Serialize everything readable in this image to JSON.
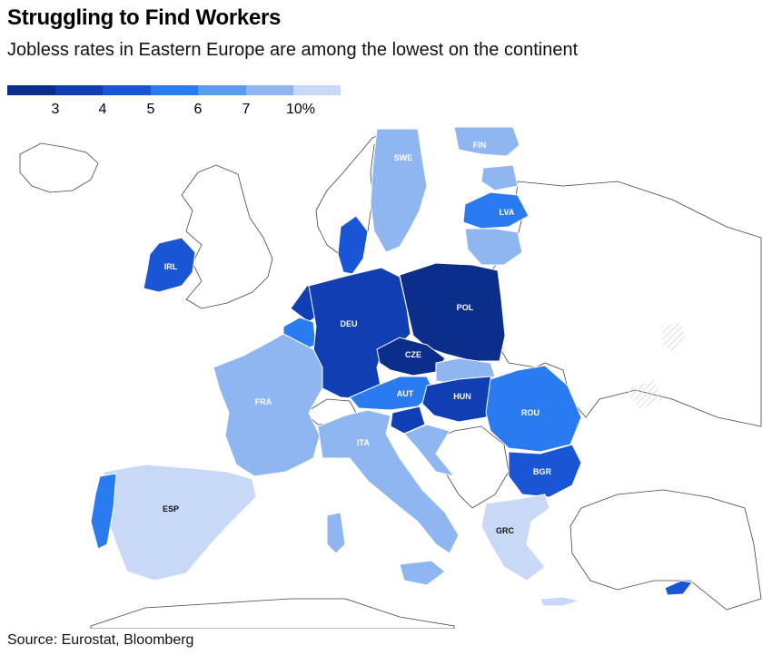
{
  "title": "Struggling to Find Workers",
  "subtitle": "Jobless rates in Eastern Europe are among the lowest on the continent",
  "legend": {
    "colors": [
      "#0a2e8a",
      "#0f3fb3",
      "#1a55d6",
      "#2b7bf0",
      "#5a9bef",
      "#8fb6f0",
      "#c8d9f7"
    ],
    "ticks": [
      "3",
      "4",
      "5",
      "6",
      "7",
      "10%"
    ]
  },
  "source": "Source: Eurostat, Bloomberg",
  "countries": [
    {
      "code": "SWE",
      "label": "SWE",
      "color": "#8fb6f0"
    },
    {
      "code": "FIN",
      "label": "FIN",
      "color": "#8fb6f0"
    },
    {
      "code": "LVA",
      "label": "LVA",
      "color": "#2b7bf0"
    },
    {
      "code": "IRL",
      "label": "IRL",
      "color": "#1a55d6"
    },
    {
      "code": "POL",
      "label": "POL",
      "color": "#0a2e8a"
    },
    {
      "code": "DEU",
      "label": "DEU",
      "color": "#0f3fb3"
    },
    {
      "code": "CZE",
      "label": "CZE",
      "color": "#0a2e8a"
    },
    {
      "code": "FRA",
      "label": "FRA",
      "color": "#8fb6f0"
    },
    {
      "code": "AUT",
      "label": "AUT",
      "color": "#2b7bf0"
    },
    {
      "code": "HUN",
      "label": "HUN",
      "color": "#0f3fb3"
    },
    {
      "code": "ROU",
      "label": "ROU",
      "color": "#2b7bf0"
    },
    {
      "code": "ITA",
      "label": "ITA",
      "color": "#8fb6f0"
    },
    {
      "code": "BGR",
      "label": "BGR",
      "color": "#1a55d6"
    },
    {
      "code": "ESP",
      "label": "ESP",
      "color": "#c8d9f7"
    },
    {
      "code": "GRC",
      "label": "GRC",
      "color": "#c8d9f7"
    }
  ]
}
